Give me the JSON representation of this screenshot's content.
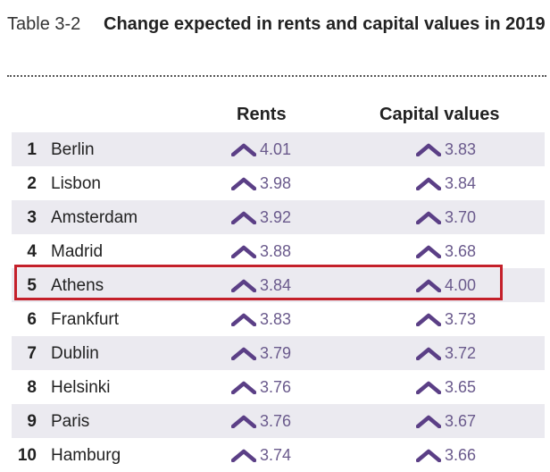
{
  "header": {
    "label": "Table 3-2",
    "title": "Change expected in rents and capital values in 2019"
  },
  "columns": {
    "rents": "Rents",
    "capital": "Capital values"
  },
  "rows": [
    {
      "rank": "1",
      "city": "Berlin",
      "rents": "4.01",
      "capital": "3.83"
    },
    {
      "rank": "2",
      "city": "Lisbon",
      "rents": "3.98",
      "capital": "3.84"
    },
    {
      "rank": "3",
      "city": "Amsterdam",
      "rents": "3.92",
      "capital": "3.70"
    },
    {
      "rank": "4",
      "city": "Madrid",
      "rents": "3.88",
      "capital": "3.68"
    },
    {
      "rank": "5",
      "city": "Athens",
      "rents": "3.84",
      "capital": "4.00"
    },
    {
      "rank": "6",
      "city": "Frankfurt",
      "rents": "3.83",
      "capital": "3.73"
    },
    {
      "rank": "7",
      "city": "Dublin",
      "rents": "3.79",
      "capital": "3.72"
    },
    {
      "rank": "8",
      "city": "Helsinki",
      "rents": "3.76",
      "capital": "3.65"
    },
    {
      "rank": "9",
      "city": "Paris",
      "rents": "3.76",
      "capital": "3.67"
    },
    {
      "rank": "10",
      "city": "Hamburg",
      "rents": "3.74",
      "capital": "3.66"
    }
  ],
  "highlight_rank": "5",
  "icons": {
    "trend": "chevron-up-icon"
  },
  "colors": {
    "row_shade": "#ebeaf0",
    "value_text": "#6a5a8c",
    "chevron": "#5b3f86",
    "highlight_border": "#c4202a"
  }
}
